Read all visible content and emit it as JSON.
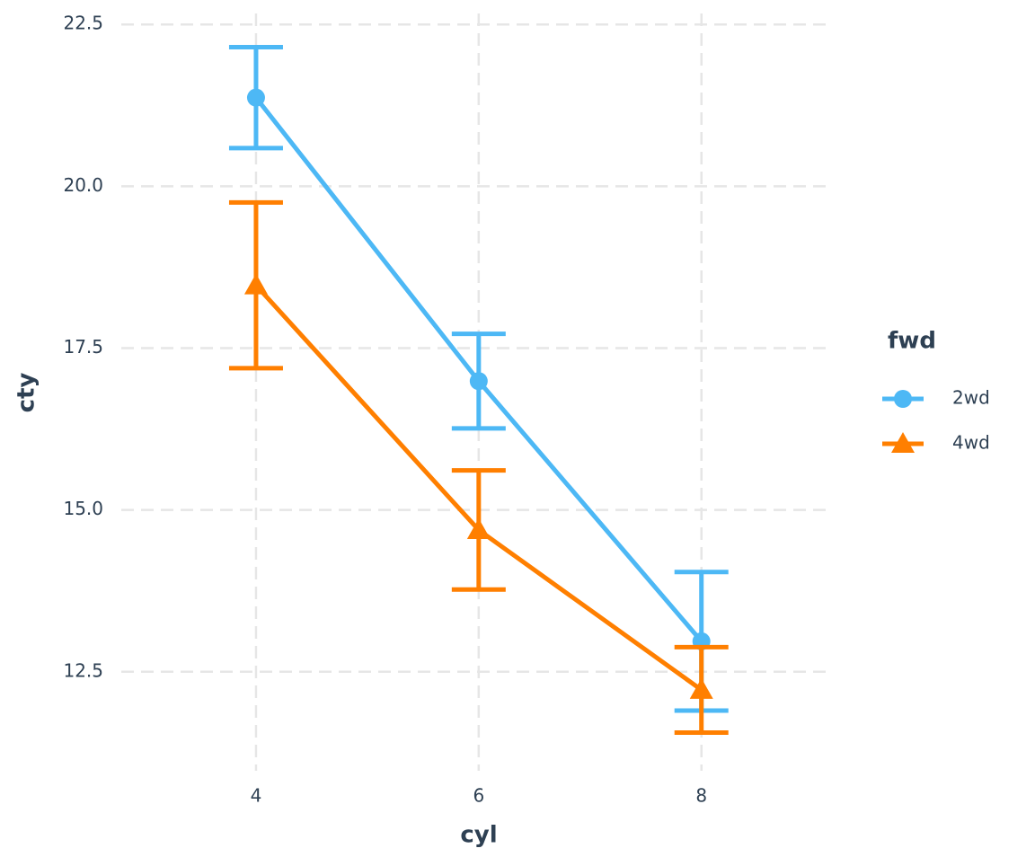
{
  "chart_data": {
    "type": "line",
    "x_label": "cyl",
    "y_label": "cty",
    "legend_title": "fwd",
    "x": [
      4,
      6,
      8
    ],
    "series": [
      {
        "name": "2wd",
        "color": "#4db8f5",
        "marker": "circle",
        "values": [
          21.37,
          16.99,
          12.97
        ],
        "errors": [
          0.78,
          0.73,
          1.07
        ]
      },
      {
        "name": "4wd",
        "color": "#ff7f00",
        "marker": "triangle",
        "values": [
          18.47,
          14.69,
          12.22
        ],
        "errors": [
          1.28,
          0.92,
          0.66
        ]
      }
    ],
    "xlim": [
      2.79,
      9.14
    ],
    "xticks": [
      4,
      6,
      8
    ],
    "ylim": [
      10.97,
      22.67
    ],
    "yticks": [
      {
        "value": 12.5,
        "label": "12.5"
      },
      {
        "value": 15,
        "label": "15.0"
      },
      {
        "value": 17.5,
        "label": "17.5"
      },
      {
        "value": 20,
        "label": "20.0"
      },
      {
        "value": 22.5,
        "label": "22.5"
      }
    ],
    "grid": true,
    "legend_position": "right"
  }
}
